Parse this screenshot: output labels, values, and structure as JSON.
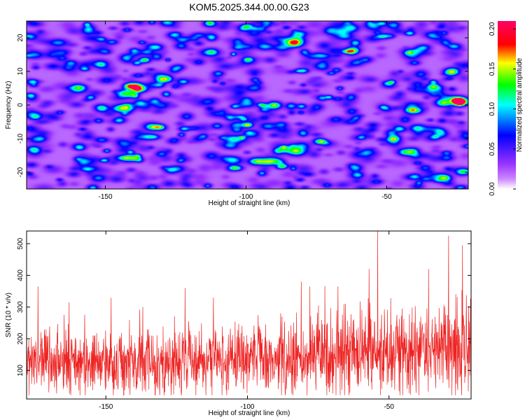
{
  "figure": {
    "title": "KOM5.2025.344.00.00.G23"
  },
  "chart_data": [
    {
      "type": "heatmap",
      "title": "KOM5.2025.344.00.00.G23",
      "xlabel": "Height of straight line (km)",
      "ylabel": "Frequency (Hz)",
      "xlim": [
        -178,
        -21
      ],
      "ylim": [
        -25,
        25
      ],
      "xticks": [
        -150,
        -100,
        -50
      ],
      "yticks": [
        -20,
        -10,
        0,
        10,
        20
      ],
      "colorbar": {
        "label": "Normalized spectral amplitude",
        "range": [
          0,
          0.21
        ],
        "ticks": [
          "0.00",
          "0.05",
          "0.10",
          "0.15",
          "0.20"
        ],
        "colormap": [
          "#ffffff",
          "#9933ff",
          "#0000ff",
          "#00ffff",
          "#00ff00",
          "#ffff00",
          "#ff0000",
          "#ff0066"
        ]
      },
      "background_level": 0.02,
      "blob_count": 900,
      "hotspots": [
        {
          "x": -24,
          "y": 1,
          "amp": 0.2
        },
        {
          "x": -27,
          "y": 10,
          "amp": 0.14
        },
        {
          "x": -90,
          "y": 0,
          "amp": 0.11
        },
        {
          "x": -25,
          "y": 1.5,
          "amp": 0.13
        }
      ]
    },
    {
      "type": "line",
      "title": "",
      "xlabel": "Height of straight line (km)",
      "ylabel": "SNR (10 * v/v)",
      "xlim": [
        -178,
        -21
      ],
      "ylim": [
        10,
        540
      ],
      "xticks": [
        -150,
        -100,
        -50
      ],
      "yticks": [
        100,
        200,
        300,
        400,
        500
      ],
      "series": [
        {
          "name": "SNR",
          "color": "#ee2222",
          "n_points": 1600,
          "trend": [
            {
              "x": -178,
              "mean": 120,
              "amp": 90
            },
            {
              "x": -130,
              "mean": 120,
              "amp": 90
            },
            {
              "x": -100,
              "mean": 135,
              "amp": 100
            },
            {
              "x": -70,
              "mean": 145,
              "amp": 115
            },
            {
              "x": -50,
              "mean": 160,
              "amp": 130
            },
            {
              "x": -21,
              "mean": 175,
              "amp": 150
            }
          ],
          "peaks": [
            {
              "x": -174,
              "y": 365
            },
            {
              "x": -163,
              "y": 315
            },
            {
              "x": -137,
              "y": 300
            },
            {
              "x": -122,
              "y": 360
            },
            {
              "x": -112,
              "y": 330
            },
            {
              "x": -81,
              "y": 380
            },
            {
              "x": -68,
              "y": 365
            },
            {
              "x": -57,
              "y": 420
            },
            {
              "x": -54,
              "y": 540
            },
            {
              "x": -36,
              "y": 420
            },
            {
              "x": -29,
              "y": 525
            },
            {
              "x": -24,
              "y": 495
            }
          ]
        }
      ]
    }
  ]
}
